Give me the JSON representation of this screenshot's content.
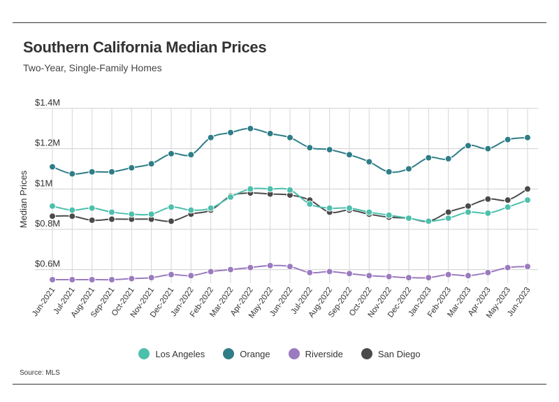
{
  "header": {
    "title": "Southern California Median Prices",
    "subtitle": "Two-Year, Single-Family Homes"
  },
  "source": "Source: MLS",
  "chart_data": {
    "type": "line",
    "ylabel": "Median Prices",
    "ylim": [
      0.55,
      1.4
    ],
    "yticks": [
      0.6,
      0.8,
      1.0,
      1.2,
      1.4
    ],
    "ytick_labels": [
      "$0.6M",
      "$0.8M",
      "$1M",
      "$1.2M",
      "$1.4M"
    ],
    "grid": true,
    "legend_position": "bottom",
    "categories": [
      "Jun-2021",
      "Jul-2021",
      "Aug-2021",
      "Sep-2021",
      "Oct-2021",
      "Nov-2021",
      "Dec-2021",
      "Jan-2022",
      "Feb-2022",
      "Mar-2022",
      "Apr-2022",
      "May-2022",
      "Jun-2022",
      "Jul-2022",
      "Aug-2022",
      "Sep-2022",
      "Oct-2022",
      "Nov-2022",
      "Dec-2022",
      "Jan-2023",
      "Feb-2023",
      "Mar-2023",
      "Apr-2023",
      "May-2023",
      "Jun-2023"
    ],
    "series": [
      {
        "name": "Los Angeles",
        "color": "#4dbfad",
        "values": [
          0.915,
          0.895,
          0.905,
          0.885,
          0.875,
          0.875,
          0.91,
          0.895,
          0.905,
          0.96,
          1.0,
          1.0,
          0.995,
          0.925,
          0.905,
          0.905,
          0.885,
          0.87,
          0.855,
          0.84,
          0.855,
          0.885,
          0.88,
          0.91,
          0.945
        ]
      },
      {
        "name": "Orange",
        "color": "#2e7d87",
        "values": [
          1.11,
          1.075,
          1.085,
          1.085,
          1.105,
          1.125,
          1.175,
          1.17,
          1.255,
          1.28,
          1.3,
          1.275,
          1.255,
          1.205,
          1.195,
          1.17,
          1.135,
          1.085,
          1.1,
          1.155,
          1.15,
          1.215,
          1.2,
          1.245,
          1.255
        ]
      },
      {
        "name": "Riverside",
        "color": "#9b7bbf",
        "values": [
          0.55,
          0.55,
          0.55,
          0.55,
          0.555,
          0.56,
          0.575,
          0.57,
          0.59,
          0.6,
          0.61,
          0.62,
          0.615,
          0.585,
          0.59,
          0.58,
          0.57,
          0.565,
          0.56,
          0.56,
          0.575,
          0.57,
          0.585,
          0.61,
          0.615
        ]
      },
      {
        "name": "San Diego",
        "color": "#4a4a4a",
        "values": [
          0.865,
          0.865,
          0.845,
          0.85,
          0.85,
          0.85,
          0.84,
          0.875,
          0.895,
          0.965,
          0.98,
          0.975,
          0.97,
          0.945,
          0.885,
          0.895,
          0.875,
          0.86,
          0.855,
          0.84,
          0.885,
          0.915,
          0.95,
          0.945,
          1.0
        ]
      }
    ]
  }
}
